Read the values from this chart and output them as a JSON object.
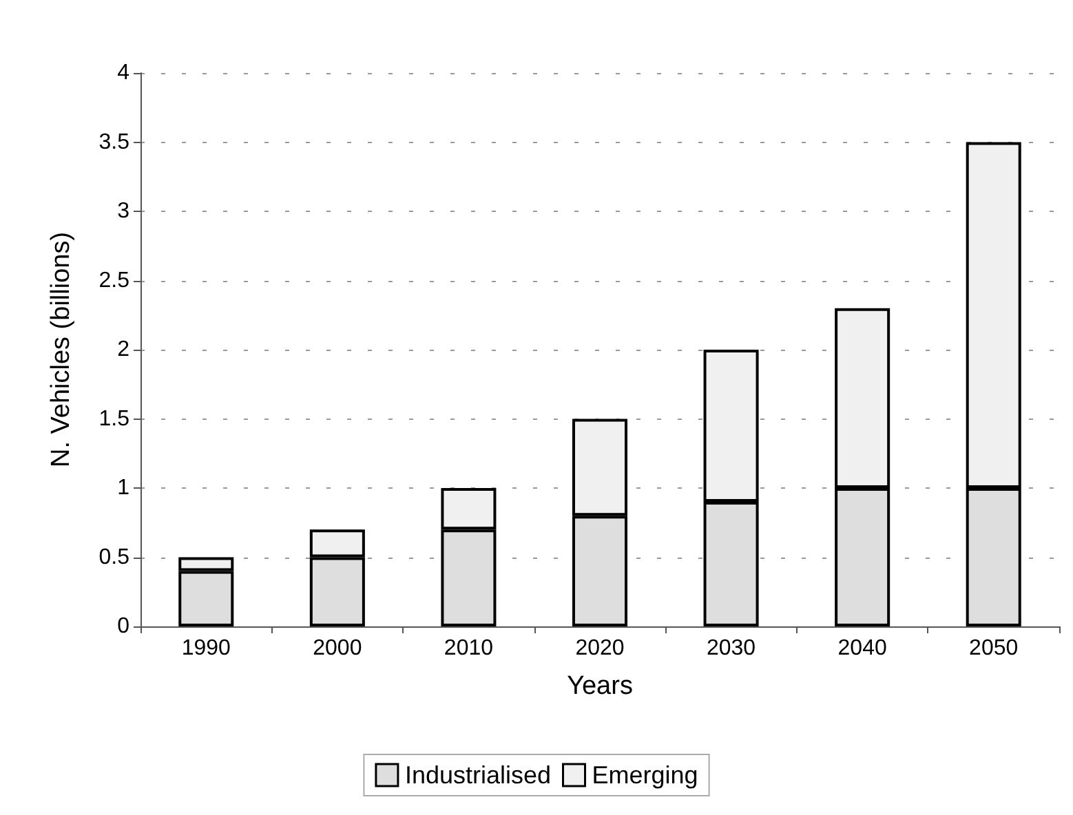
{
  "chart_data": {
    "type": "bar",
    "stacked": true,
    "xlabel": "Years",
    "ylabel": "N. Vehicles (billions)",
    "categories": [
      "1990",
      "2000",
      "2010",
      "2020",
      "2030",
      "2040",
      "2050"
    ],
    "series": [
      {
        "name": "Industrialised",
        "color": "#dedede",
        "values": [
          0.4,
          0.5,
          0.7,
          0.8,
          0.9,
          1.0,
          1.0
        ]
      },
      {
        "name": "Emerging",
        "color": "#f0f0f0",
        "values": [
          0.1,
          0.2,
          0.3,
          0.7,
          1.1,
          1.3,
          2.5
        ]
      }
    ],
    "ylim": [
      0,
      4
    ],
    "yticks": [
      0,
      0.5,
      1,
      1.5,
      2,
      2.5,
      3,
      3.5,
      4
    ],
    "grid": "y",
    "legend": "bottom"
  }
}
